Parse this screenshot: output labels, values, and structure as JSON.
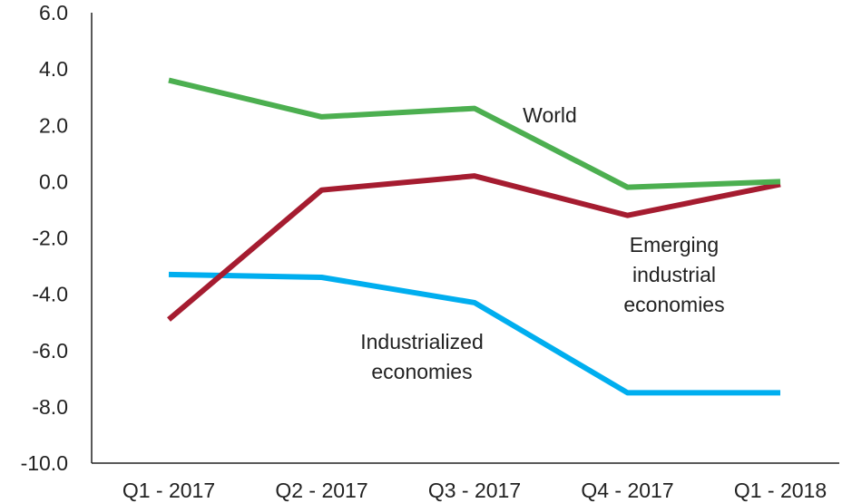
{
  "chart_data": {
    "type": "line",
    "categories": [
      "Q1 - 2017",
      "Q2 - 2017",
      "Q3 - 2017",
      "Q4 - 2017",
      "Q1 - 2018"
    ],
    "ylim": [
      -10.0,
      6.0
    ],
    "yticks": [
      "6.0",
      "4.0",
      "2.0",
      "0.0",
      "-2.0",
      "-4.0",
      "-6.0",
      "-8.0",
      "-10.0"
    ],
    "ytick_values": [
      6,
      4,
      2,
      0,
      -2,
      -4,
      -6,
      -8,
      -10
    ],
    "title": "",
    "xlabel": "",
    "ylabel": "",
    "grid": false,
    "series": [
      {
        "name": "World",
        "color": "#4caf50",
        "values": [
          3.6,
          2.3,
          2.6,
          -0.2,
          0.0
        ]
      },
      {
        "name": "Emerging industrial economies",
        "color": "#a51c30",
        "values": [
          -4.9,
          -0.3,
          0.2,
          -1.2,
          -0.1
        ]
      },
      {
        "name": "Industrialized economies",
        "color": "#00aeef",
        "values": [
          -3.3,
          -3.4,
          -4.3,
          -7.5,
          -7.5
        ]
      }
    ],
    "annotations": [
      {
        "series": 0,
        "lines": [
          "World"
        ]
      },
      {
        "series": 1,
        "lines": [
          "Emerging",
          "industrial",
          "economies"
        ]
      },
      {
        "series": 2,
        "lines": [
          "Industrialized",
          "economies"
        ]
      }
    ]
  }
}
